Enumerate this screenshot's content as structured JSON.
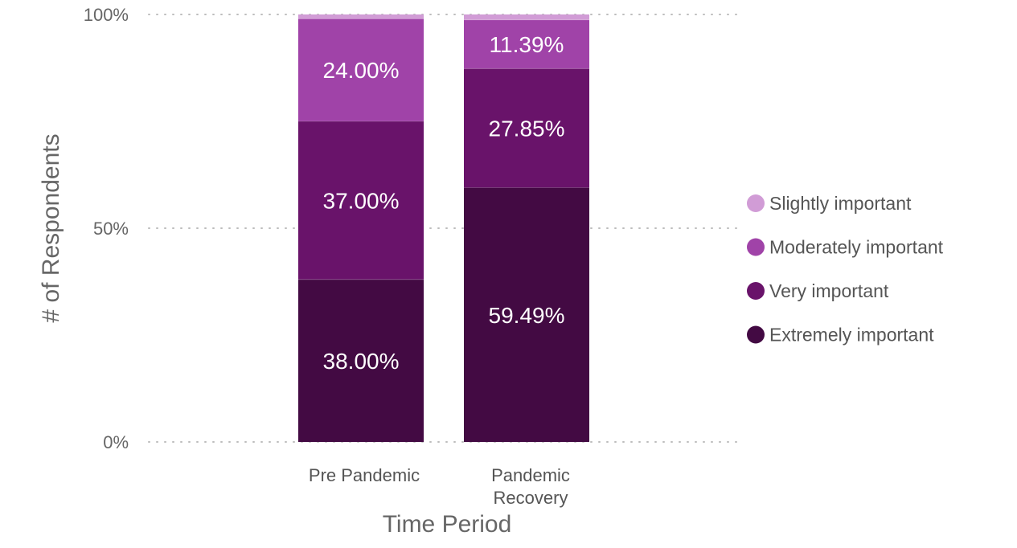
{
  "chart_data": {
    "type": "bar",
    "stacked": true,
    "normalized": true,
    "categories": [
      "Pre Pandemic",
      "Pandemic Recovery"
    ],
    "category_lines": [
      [
        "Pre Pandemic"
      ],
      [
        "Pandemic",
        "Recovery"
      ]
    ],
    "series": [
      {
        "name": "Extremely important",
        "color": "#430a43",
        "values": [
          38.0,
          59.49
        ],
        "labels": [
          "38.00%",
          "59.49%"
        ]
      },
      {
        "name": "Very important",
        "color": "#69136a",
        "values": [
          37.0,
          27.85
        ],
        "labels": [
          "37.00%",
          "27.85%"
        ]
      },
      {
        "name": "Moderately important",
        "color": "#a043a8",
        "values": [
          24.0,
          11.39
        ],
        "labels": [
          "24.00%",
          "11.39%"
        ]
      },
      {
        "name": "Slightly important",
        "color": "#d19cd6",
        "values": [
          1.0,
          1.27
        ],
        "labels": [
          "",
          ""
        ]
      }
    ],
    "legend_order": [
      "Slightly important",
      "Moderately important",
      "Very important",
      "Extremely important"
    ],
    "ylim": [
      0,
      100
    ],
    "yticks": [
      0,
      50,
      100
    ],
    "ytick_labels": [
      "0%",
      "50%",
      "100%"
    ],
    "xlabel": "Time Period",
    "ylabel": "# of Respondents",
    "grid": "horizontal-dotted",
    "legend_position": "right"
  }
}
